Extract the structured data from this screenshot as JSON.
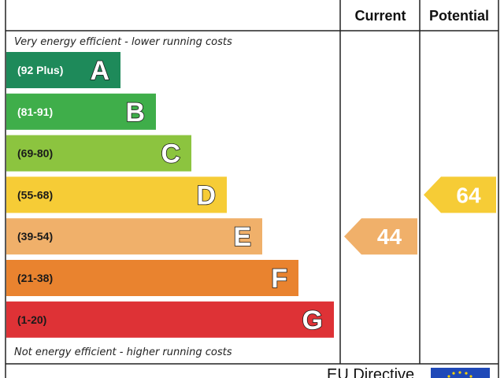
{
  "chart_data": {
    "type": "bar",
    "headers": {
      "current": "Current",
      "potential": "Potential"
    },
    "top_note": "Very energy efficient - lower running costs",
    "bottom_note": "Not energy efficient - higher running costs",
    "bands": [
      {
        "range": "(92 Plus)",
        "letter": "A",
        "color": "#1e8a5a",
        "text_color": "#ffffff"
      },
      {
        "range": "(81-91)",
        "letter": "B",
        "color": "#3fae4a",
        "text_color": "#ffffff"
      },
      {
        "range": "(69-80)",
        "letter": "C",
        "color": "#8cc43f",
        "text_color": "#1a1a1a"
      },
      {
        "range": "(55-68)",
        "letter": "D",
        "color": "#f6cc36",
        "text_color": "#1a1a1a"
      },
      {
        "range": "(39-54)",
        "letter": "E",
        "color": "#f0b06a",
        "text_color": "#1a1a1a"
      },
      {
        "range": "(21-38)",
        "letter": "F",
        "color": "#e9832f",
        "text_color": "#1a1a1a"
      },
      {
        "range": "(1-20)",
        "letter": "G",
        "color": "#de3236",
        "text_color": "#1a1a1a"
      }
    ],
    "current": {
      "value": 44,
      "band": "E",
      "color": "#f0b06a"
    },
    "potential": {
      "value": 64,
      "band": "D",
      "color": "#f6cc36"
    },
    "footer_text": "EU Directive"
  }
}
